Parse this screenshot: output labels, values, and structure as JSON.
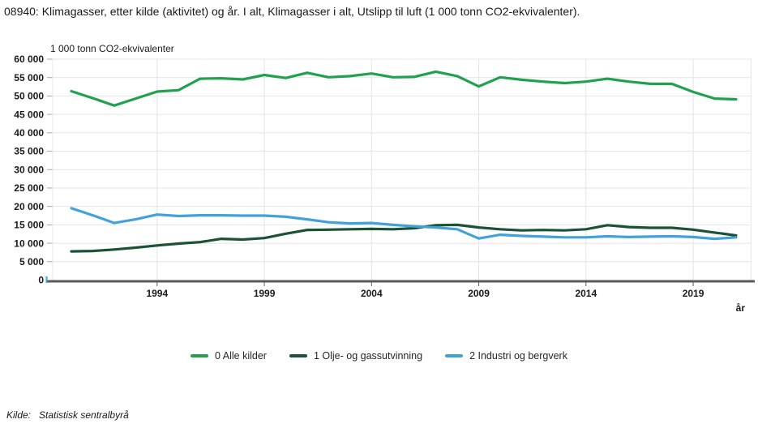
{
  "page": {
    "title": "08940: Klimagasser, etter kilde (aktivitet) og år. I alt, Klimagasser i alt, Utslipp til luft (1 000 tonn CO2-ekvivalenter).",
    "source_label": "Kilde:",
    "source_value": "Statistisk sentralbyrå"
  },
  "theme": {
    "grid_color": "#e4e4e4",
    "plot_border_color": "#e8e8e8",
    "axis_color": "#595959",
    "y_tick_color": "#a6a6a6",
    "zero_tick_color": "#41a2db",
    "text_color": "#1a1a1a",
    "background": "#ffffff"
  },
  "chart_data": {
    "type": "line",
    "title": "08940: Klimagasser, etter kilde (aktivitet) og år. I alt, Klimagasser i alt, Utslipp til luft (1 000 tonn CO2-ekvivalenter).",
    "unit_label": "1 000 tonn CO2-ekvivalenter",
    "xlabel": "år",
    "ylabel": "1 000 tonn CO2-ekvivalenter",
    "ylim": [
      0,
      60000
    ],
    "ytick_step": 5000,
    "grid": true,
    "legend_position": "bottom",
    "xticks": [
      1994,
      1999,
      2004,
      2009,
      2014,
      2019
    ],
    "x": [
      1990,
      1991,
      1992,
      1993,
      1994,
      1995,
      1996,
      1997,
      1998,
      1999,
      2000,
      2001,
      2002,
      2003,
      2004,
      2005,
      2006,
      2007,
      2008,
      2009,
      2010,
      2011,
      2012,
      2013,
      2014,
      2015,
      2016,
      2017,
      2018,
      2019,
      2020,
      2021
    ],
    "series": [
      {
        "name": "0 Alle kilder",
        "color": "#21a14f",
        "values": [
          51300,
          49400,
          47400,
          49300,
          51200,
          51600,
          54700,
          54800,
          54500,
          55700,
          54900,
          56300,
          55100,
          55400,
          56100,
          55100,
          55200,
          56600,
          55400,
          52600,
          55100,
          54400,
          53900,
          53500,
          53900,
          54700,
          53900,
          53300,
          53300,
          51100,
          49300,
          49100
        ]
      },
      {
        "name": "1 Olje- og gassutvinning",
        "color": "#1a5235",
        "values": [
          7800,
          7900,
          8300,
          8800,
          9400,
          9900,
          10300,
          11200,
          11000,
          11400,
          12600,
          13600,
          13700,
          13800,
          13900,
          13800,
          14100,
          14900,
          15000,
          14300,
          13800,
          13500,
          13600,
          13500,
          13800,
          14900,
          14400,
          14200,
          14200,
          13700,
          12900,
          12100
        ]
      },
      {
        "name": "2 Industri og bergverk",
        "color": "#41a2db",
        "values": [
          19500,
          17600,
          15500,
          16500,
          17800,
          17400,
          17600,
          17600,
          17500,
          17500,
          17200,
          16500,
          15700,
          15400,
          15500,
          15000,
          14600,
          14300,
          13800,
          11300,
          12300,
          12000,
          11800,
          11600,
          11600,
          11900,
          11700,
          11800,
          11900,
          11700,
          11200,
          11600
        ]
      }
    ]
  }
}
